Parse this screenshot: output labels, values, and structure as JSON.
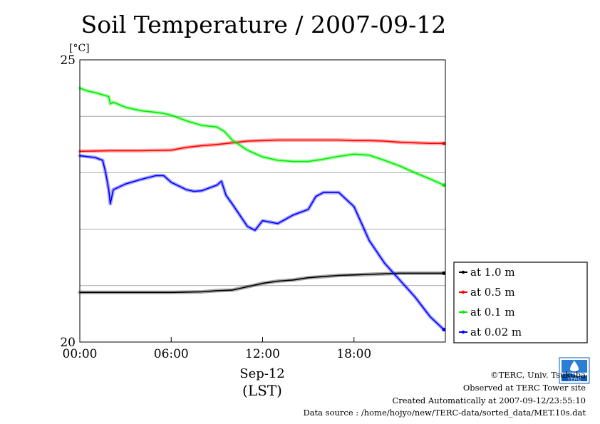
{
  "chart_data": {
    "type": "line",
    "title": "Soil Temperature / 2007-09-12",
    "ylabel": "[°C]",
    "xlabel_date": "Sep-12",
    "xlabel_zone": "(LST)",
    "x_unit": "hours",
    "xlim": [
      0,
      24
    ],
    "ylim": [
      20,
      25
    ],
    "x_ticks": [
      {
        "value": 0,
        "label": "00:00"
      },
      {
        "value": 6,
        "label": "06:00"
      },
      {
        "value": 12,
        "label": "12:00"
      },
      {
        "value": 18,
        "label": "18:00"
      }
    ],
    "y_ticks": [
      {
        "value": 20,
        "label": "20"
      },
      {
        "value": 25,
        "label": "25"
      }
    ],
    "grid_y": [
      21,
      22,
      23,
      24
    ],
    "grid": true,
    "legend_position": "right",
    "series": [
      {
        "name": "at 1.0 m",
        "color": "#000000",
        "points": [
          [
            0,
            20.88
          ],
          [
            2,
            20.88
          ],
          [
            4,
            20.88
          ],
          [
            6,
            20.88
          ],
          [
            8,
            20.89
          ],
          [
            9,
            20.91
          ],
          [
            10,
            20.92
          ],
          [
            11,
            20.98
          ],
          [
            12,
            21.04
          ],
          [
            13,
            21.08
          ],
          [
            14,
            21.1
          ],
          [
            15,
            21.14
          ],
          [
            16,
            21.16
          ],
          [
            17,
            21.18
          ],
          [
            18,
            21.19
          ],
          [
            19,
            21.2
          ],
          [
            20,
            21.21
          ],
          [
            21,
            21.22
          ],
          [
            22,
            21.22
          ],
          [
            23,
            21.22
          ],
          [
            23.9,
            21.22
          ]
        ]
      },
      {
        "name": "at 0.5 m",
        "color": "#ff0000",
        "points": [
          [
            0,
            23.38
          ],
          [
            2,
            23.39
          ],
          [
            4,
            23.39
          ],
          [
            6,
            23.4
          ],
          [
            7,
            23.45
          ],
          [
            8,
            23.48
          ],
          [
            9,
            23.5
          ],
          [
            10,
            23.53
          ],
          [
            11,
            23.56
          ],
          [
            12,
            23.57
          ],
          [
            13,
            23.58
          ],
          [
            14,
            23.58
          ],
          [
            15,
            23.58
          ],
          [
            16,
            23.58
          ],
          [
            17,
            23.58
          ],
          [
            18,
            23.57
          ],
          [
            19,
            23.57
          ],
          [
            20,
            23.56
          ],
          [
            21,
            23.54
          ],
          [
            22,
            23.53
          ],
          [
            23,
            23.52
          ],
          [
            23.9,
            23.52
          ]
        ]
      },
      {
        "name": "at 0.1 m",
        "color": "#00ee00",
        "points": [
          [
            0,
            24.5
          ],
          [
            0.5,
            24.45
          ],
          [
            1,
            24.42
          ],
          [
            1.5,
            24.38
          ],
          [
            1.9,
            24.35
          ],
          [
            2,
            24.22
          ],
          [
            2.2,
            24.25
          ],
          [
            3,
            24.16
          ],
          [
            4,
            24.1
          ],
          [
            5,
            24.07
          ],
          [
            5.5,
            24.05
          ],
          [
            6,
            24.02
          ],
          [
            7,
            23.92
          ],
          [
            8,
            23.84
          ],
          [
            9,
            23.81
          ],
          [
            9.5,
            23.73
          ],
          [
            10,
            23.58
          ],
          [
            11,
            23.4
          ],
          [
            12,
            23.28
          ],
          [
            13,
            23.22
          ],
          [
            14,
            23.2
          ],
          [
            15,
            23.2
          ],
          [
            16,
            23.24
          ],
          [
            17,
            23.29
          ],
          [
            18,
            23.33
          ],
          [
            19,
            23.31
          ],
          [
            20,
            23.22
          ],
          [
            21,
            23.12
          ],
          [
            22,
            23.0
          ],
          [
            23,
            22.89
          ],
          [
            23.9,
            22.78
          ]
        ]
      },
      {
        "name": "at 0.02 m",
        "color": "#0000ff",
        "points": [
          [
            0,
            23.3
          ],
          [
            1,
            23.27
          ],
          [
            1.5,
            23.22
          ],
          [
            1.7,
            23.0
          ],
          [
            1.9,
            22.7
          ],
          [
            2,
            22.45
          ],
          [
            2.2,
            22.7
          ],
          [
            3,
            22.8
          ],
          [
            4,
            22.88
          ],
          [
            5,
            22.95
          ],
          [
            5.5,
            22.95
          ],
          [
            6,
            22.83
          ],
          [
            7,
            22.7
          ],
          [
            7.5,
            22.67
          ],
          [
            8,
            22.68
          ],
          [
            9,
            22.78
          ],
          [
            9.3,
            22.85
          ],
          [
            9.6,
            22.6
          ],
          [
            10,
            22.45
          ],
          [
            11,
            22.05
          ],
          [
            11.5,
            21.98
          ],
          [
            12,
            22.15
          ],
          [
            13,
            22.1
          ],
          [
            14,
            22.25
          ],
          [
            15,
            22.35
          ],
          [
            15.5,
            22.58
          ],
          [
            16,
            22.65
          ],
          [
            17,
            22.65
          ],
          [
            18,
            22.4
          ],
          [
            19,
            21.8
          ],
          [
            20,
            21.4
          ],
          [
            21,
            21.1
          ],
          [
            22,
            20.8
          ],
          [
            23,
            20.45
          ],
          [
            23.9,
            20.22
          ]
        ]
      }
    ]
  },
  "credits": {
    "copyright": "©TERC, Univ. Tsukuba",
    "observed": "Observed at TERC Tower site",
    "created": "Created Automatically at 2007-09-12/23:55:10",
    "source": "Data source : /home/hojyo/new/TERC-data/sorted_data/MET.10s.dat",
    "logo_text": "TERC"
  }
}
